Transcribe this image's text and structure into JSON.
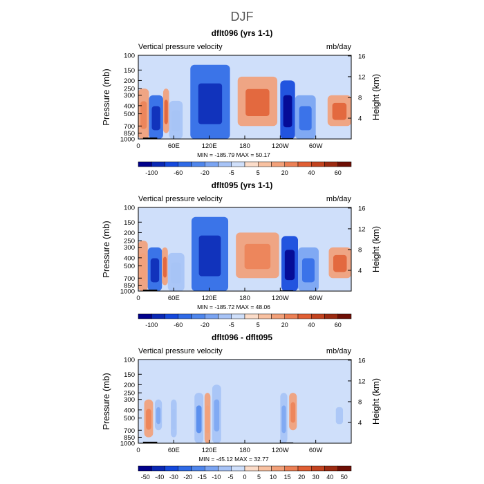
{
  "title": "DJF",
  "chart_data": [
    {
      "type": "heatmap",
      "title": "dflt096 (yrs 1-1)",
      "left_label": "Vertical pressure velocity",
      "right_label": "mb/day",
      "ylabel": "Pressure (mb)",
      "ylabel_right": "Height (km)",
      "x_ticks": [
        "0",
        "60E",
        "120E",
        "180",
        "120W",
        "60W"
      ],
      "x_range": [
        0,
        360
      ],
      "p_range": [
        1000,
        100
      ],
      "p_ticks": [
        100,
        150,
        200,
        250,
        300,
        400,
        500,
        700,
        850,
        1000
      ],
      "height_ticks": [
        4,
        8,
        12,
        16
      ],
      "stats": "MIN = -185.79   MAX =  50.17",
      "colorbar_labels": [
        "-100",
        "-60",
        "-20",
        "-5",
        "5",
        "20",
        "40",
        "60"
      ],
      "colorbar_colors": [
        "#00008b",
        "#0a28b4",
        "#1448dc",
        "#2f6ae6",
        "#4f86ec",
        "#7aa4f2",
        "#a7c3f6",
        "#cfdffa",
        "#fbdcc9",
        "#f8c1a1",
        "#f2a079",
        "#ec8055",
        "#e05e33",
        "#c2431f",
        "#9c2a11",
        "#6e0f05"
      ],
      "zones": [
        {
          "lon": [
            0,
            18
          ],
          "p": [
            1000,
            250
          ],
          "value": 25
        },
        {
          "lon": [
            18,
            42
          ],
          "p": [
            1000,
            300
          ],
          "value": -60
        },
        {
          "lon": [
            42,
            52
          ],
          "p": [
            850,
            250
          ],
          "value": 30
        },
        {
          "lon": [
            52,
            75
          ],
          "p": [
            1000,
            350
          ],
          "value": -20
        },
        {
          "lon": [
            88,
            155
          ],
          "p": [
            1000,
            130
          ],
          "value": -60
        },
        {
          "lon": [
            168,
            235
          ],
          "p": [
            700,
            180
          ],
          "value": 30
        },
        {
          "lon": [
            240,
            265
          ],
          "p": [
            1000,
            200
          ],
          "value": -80
        },
        {
          "lon": [
            265,
            300
          ],
          "p": [
            1000,
            300
          ],
          "value": -40
        },
        {
          "lon": [
            320,
            360
          ],
          "p": [
            700,
            300
          ],
          "value": 30
        }
      ]
    },
    {
      "type": "heatmap",
      "title": "dflt095 (yrs 1-1)",
      "left_label": "Vertical pressure velocity",
      "right_label": "mb/day",
      "ylabel": "Pressure (mb)",
      "ylabel_right": "Height (km)",
      "x_ticks": [
        "0",
        "60E",
        "120E",
        "180",
        "120W",
        "60W"
      ],
      "x_range": [
        0,
        360
      ],
      "p_range": [
        1000,
        100
      ],
      "p_ticks": [
        100,
        150,
        200,
        250,
        300,
        400,
        500,
        700,
        850,
        1000
      ],
      "height_ticks": [
        4,
        8,
        12,
        16
      ],
      "stats": "MIN = -185.72   MAX =  48.06",
      "colorbar_labels": [
        "-100",
        "-60",
        "-20",
        "-5",
        "5",
        "20",
        "40",
        "60"
      ],
      "colorbar_colors": [
        "#00008b",
        "#0a28b4",
        "#1448dc",
        "#2f6ae6",
        "#4f86ec",
        "#7aa4f2",
        "#a7c3f6",
        "#cfdffa",
        "#fbdcc9",
        "#f8c1a1",
        "#f2a079",
        "#ec8055",
        "#e05e33",
        "#c2431f",
        "#9c2a11",
        "#6e0f05"
      ],
      "zones": [
        {
          "lon": [
            0,
            16
          ],
          "p": [
            1000,
            250
          ],
          "value": 20
        },
        {
          "lon": [
            16,
            40
          ],
          "p": [
            1000,
            300
          ],
          "value": -60
        },
        {
          "lon": [
            40,
            50
          ],
          "p": [
            850,
            300
          ],
          "value": 30
        },
        {
          "lon": [
            50,
            78
          ],
          "p": [
            1000,
            350
          ],
          "value": -20
        },
        {
          "lon": [
            90,
            152
          ],
          "p": [
            1000,
            130
          ],
          "value": -60
        },
        {
          "lon": [
            165,
            238
          ],
          "p": [
            700,
            200
          ],
          "value": 25
        },
        {
          "lon": [
            242,
            270
          ],
          "p": [
            1000,
            220
          ],
          "value": -80
        },
        {
          "lon": [
            270,
            305
          ],
          "p": [
            1000,
            300
          ],
          "value": -40
        },
        {
          "lon": [
            322,
            360
          ],
          "p": [
            700,
            300
          ],
          "value": 30
        }
      ]
    },
    {
      "type": "heatmap",
      "title": "dflt096 - dflt095",
      "left_label": "Vertical pressure velocity",
      "right_label": "mb/day",
      "ylabel": "Pressure (mb)",
      "ylabel_right": "Height (km)",
      "x_ticks": [
        "0",
        "60E",
        "120E",
        "180",
        "120W",
        "60W"
      ],
      "x_range": [
        0,
        360
      ],
      "p_range": [
        1000,
        100
      ],
      "p_ticks": [
        100,
        150,
        200,
        250,
        300,
        400,
        500,
        700,
        850,
        1000
      ],
      "height_ticks": [
        4,
        8,
        12,
        16
      ],
      "stats": "MIN = -45.12   MAX =  32.77",
      "colorbar_labels": [
        "-50",
        "-40",
        "-30",
        "-20",
        "-15",
        "-10",
        "-5",
        "0",
        "5",
        "10",
        "15",
        "20",
        "30",
        "40",
        "50"
      ],
      "colorbar_colors": [
        "#00008b",
        "#0a28b4",
        "#1448dc",
        "#2f6ae6",
        "#4f86ec",
        "#7aa4f2",
        "#a7c3f6",
        "#cfdffa",
        "#fbdcc9",
        "#f8c1a1",
        "#f2a079",
        "#ec8055",
        "#e05e33",
        "#c2431f",
        "#9c2a11",
        "#6e0f05"
      ],
      "zones": [
        {
          "lon": [
            10,
            25
          ],
          "p": [
            850,
            300
          ],
          "value": 25
        },
        {
          "lon": [
            28,
            40
          ],
          "p": [
            700,
            300
          ],
          "value": -25
        },
        {
          "lon": [
            55,
            65
          ],
          "p": [
            850,
            300
          ],
          "value": -20
        },
        {
          "lon": [
            95,
            110
          ],
          "p": [
            1000,
            250
          ],
          "value": -30
        },
        {
          "lon": [
            112,
            122
          ],
          "p": [
            1000,
            250
          ],
          "value": 20
        },
        {
          "lon": [
            125,
            140
          ],
          "p": [
            1000,
            200
          ],
          "value": -25
        },
        {
          "lon": [
            240,
            252
          ],
          "p": [
            1000,
            250
          ],
          "value": -25
        },
        {
          "lon": [
            255,
            268
          ],
          "p": [
            700,
            250
          ],
          "value": 25
        },
        {
          "lon": [
            330,
            350
          ],
          "p": [
            700,
            300
          ],
          "value": -15
        }
      ]
    }
  ]
}
